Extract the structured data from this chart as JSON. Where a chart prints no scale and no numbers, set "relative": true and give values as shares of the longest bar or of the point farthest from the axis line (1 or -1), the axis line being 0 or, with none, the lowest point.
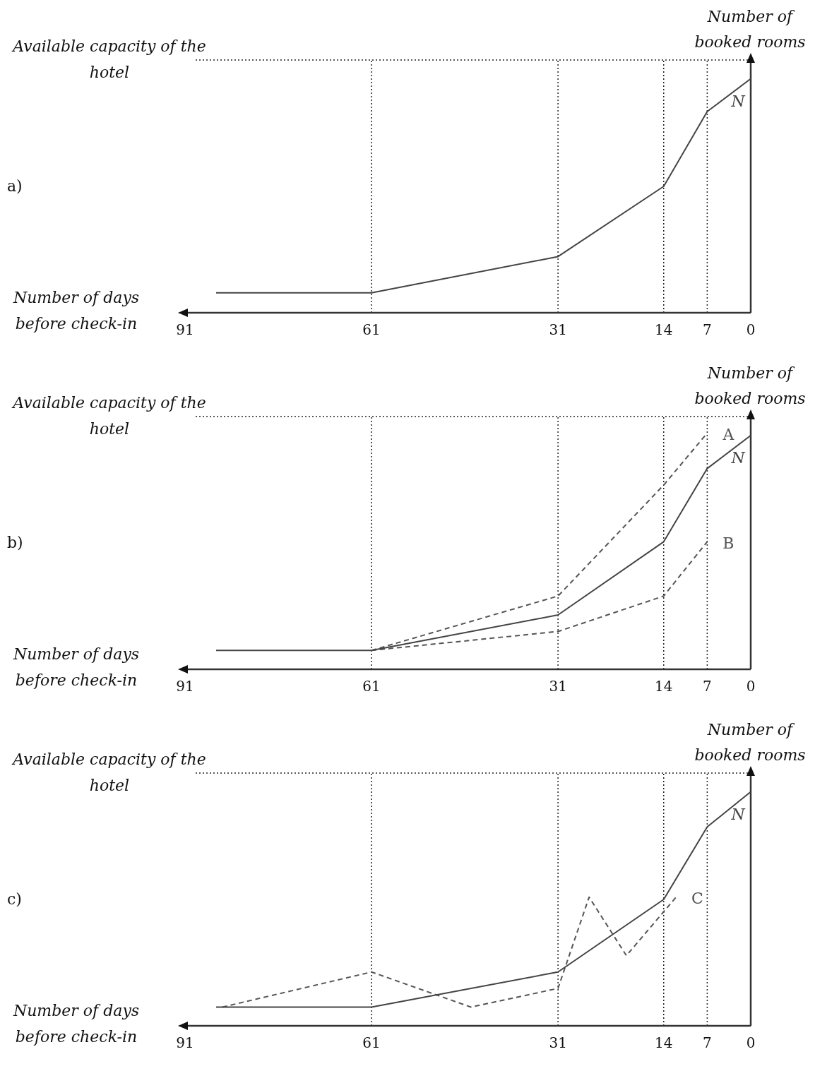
{
  "chart_data": [
    {
      "type": "line",
      "annotations": [
        "a)"
      ],
      "xlabel": "Number of days before check-in",
      "ylabel": "Number of booked rooms",
      "relative": true,
      "xlim": [
        91,
        0
      ],
      "xticks": [
        91,
        61,
        31,
        14,
        7,
        0
      ],
      "legend": false,
      "grid": false,
      "marker": "none",
      "series": [
        {
          "name": "N",
          "color": "#444444",
          "line_style": "solid",
          "x": [
            86,
            61,
            31,
            14,
            7,
            0
          ],
          "values": [
            0.085,
            0.085,
            0.24,
            0.54,
            0.86,
            1
          ]
        }
      ],
      "ref_lines": [
        {
          "axis": "y",
          "value": 1.08,
          "label": "Available capacity of the hotel",
          "line_style": "dotted",
          "color": "#222222"
        },
        {
          "axis": "x",
          "value": 61,
          "line_style": "dotted",
          "color": "#222222"
        },
        {
          "axis": "x",
          "value": 31,
          "line_style": "dotted",
          "color": "#222222"
        },
        {
          "axis": "x",
          "value": 14,
          "line_style": "dotted",
          "color": "#222222"
        },
        {
          "axis": "x",
          "value": 7,
          "line_style": "dotted",
          "color": "#222222"
        }
      ]
    },
    {
      "type": "line",
      "annotations": [
        "b)"
      ],
      "xlabel": "Number of days before check-in",
      "ylabel": "Number of booked rooms",
      "relative": true,
      "xlim": [
        91,
        0
      ],
      "xticks": [
        91,
        61,
        31,
        14,
        7,
        0
      ],
      "legend": false,
      "grid": false,
      "marker": "none",
      "series": [
        {
          "name": "N",
          "color": "#444444",
          "line_style": "solid",
          "x": [
            86,
            61,
            31,
            14,
            7,
            0
          ],
          "values": [
            0.08,
            0.08,
            0.23,
            0.54,
            0.85,
            0.99
          ]
        },
        {
          "name": "A",
          "color": "#555555",
          "line_style": "dashed",
          "x": [
            61,
            31,
            14,
            7
          ],
          "values": [
            0.08,
            0.31,
            0.78,
            1
          ]
        },
        {
          "name": "B",
          "color": "#555555",
          "line_style": "dashed",
          "x": [
            61,
            31,
            14,
            7
          ],
          "values": [
            0.08,
            0.16,
            0.31,
            0.54
          ]
        }
      ],
      "ref_lines": [
        {
          "axis": "y",
          "value": 1.07,
          "label": "Available capacity of the hotel",
          "line_style": "dotted",
          "color": "#222222"
        },
        {
          "axis": "x",
          "value": 61,
          "line_style": "dotted",
          "color": "#222222"
        },
        {
          "axis": "x",
          "value": 31,
          "line_style": "dotted",
          "color": "#222222"
        },
        {
          "axis": "x",
          "value": 14,
          "line_style": "dotted",
          "color": "#222222"
        },
        {
          "axis": "x",
          "value": 7,
          "line_style": "dotted",
          "color": "#222222"
        }
      ]
    },
    {
      "type": "line",
      "annotations": [
        "c)"
      ],
      "xlabel": "Number of days before check-in",
      "ylabel": "Number of booked rooms",
      "relative": true,
      "xlim": [
        91,
        0
      ],
      "xticks": [
        91,
        61,
        31,
        14,
        7,
        0
      ],
      "legend": false,
      "grid": false,
      "marker": "none",
      "series": [
        {
          "name": "N",
          "color": "#444444",
          "line_style": "solid",
          "x": [
            86,
            61,
            31,
            14,
            7,
            0
          ],
          "values": [
            0.08,
            0.08,
            0.23,
            0.54,
            0.85,
            1
          ]
        },
        {
          "name": "C",
          "color": "#555555",
          "line_style": "dashed",
          "x": [
            85,
            61,
            45,
            31,
            26,
            20,
            12
          ],
          "values": [
            0.08,
            0.23,
            0.08,
            0.16,
            0.55,
            0.3,
            0.55
          ]
        }
      ],
      "ref_lines": [
        {
          "axis": "y",
          "value": 1.08,
          "label": "Available capacity of the hotel",
          "line_style": "dotted",
          "color": "#222222"
        },
        {
          "axis": "x",
          "value": 61,
          "line_style": "dotted",
          "color": "#222222"
        },
        {
          "axis": "x",
          "value": 31,
          "line_style": "dotted",
          "color": "#222222"
        },
        {
          "axis": "x",
          "value": 14,
          "line_style": "dotted",
          "color": "#222222"
        },
        {
          "axis": "x",
          "value": 7,
          "line_style": "dotted",
          "color": "#222222"
        }
      ]
    }
  ]
}
